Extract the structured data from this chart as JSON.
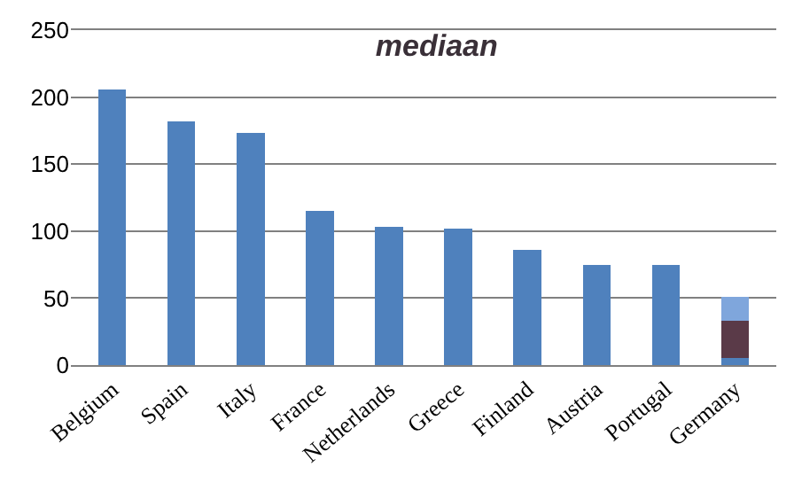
{
  "chart_data": {
    "type": "bar",
    "title": "mediaan",
    "categories": [
      "Belgium",
      "Spain",
      "Italy",
      "France",
      "Netherlands",
      "Greece",
      "Finland",
      "Austria",
      "Portugal",
      "Germany"
    ],
    "stacked": true,
    "series": [
      {
        "color": "#4f81bd",
        "values": [
          206,
          182,
          173,
          115,
          103,
          102,
          86,
          75,
          75,
          5
        ]
      },
      {
        "color": "#5a3a48",
        "values": [
          null,
          null,
          null,
          null,
          null,
          null,
          null,
          null,
          null,
          28
        ]
      },
      {
        "color": "#7fa6dc",
        "values": [
          null,
          null,
          null,
          null,
          null,
          null,
          null,
          null,
          null,
          18
        ]
      }
    ],
    "ylim": [
      0,
      250
    ],
    "yticks": [
      0,
      50,
      100,
      150,
      200,
      250
    ],
    "grid": "y"
  }
}
